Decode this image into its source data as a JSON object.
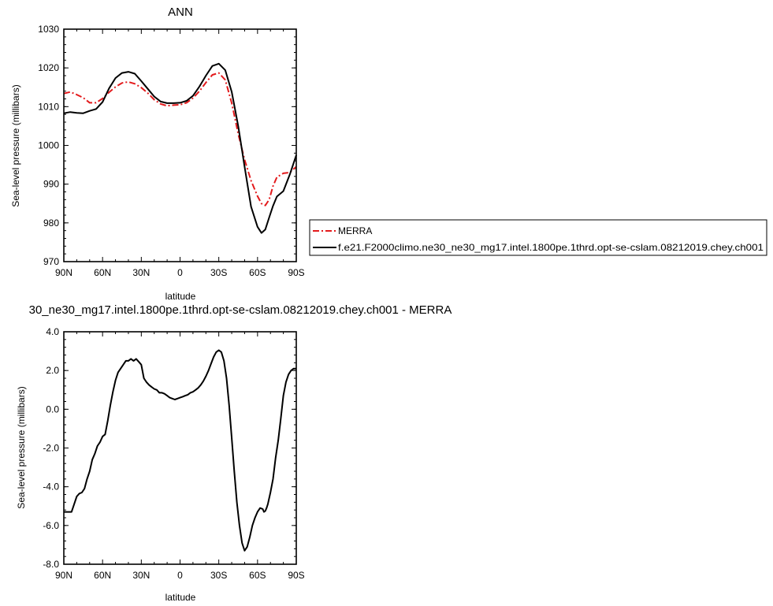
{
  "chart_data": [
    {
      "type": "line",
      "title": "ANN",
      "xlabel": "latitude",
      "ylabel": "Sea-level pressure (millibars)",
      "xlim": [
        90,
        -90
      ],
      "ylim": [
        970,
        1030
      ],
      "x_ticks": [
        90,
        60,
        30,
        0,
        -30,
        -60,
        -90
      ],
      "x_tick_labels": [
        "90N",
        "60N",
        "30N",
        "0",
        "30S",
        "60S",
        "90S"
      ],
      "y_ticks": [
        970,
        980,
        990,
        1000,
        1010,
        1020,
        1030
      ],
      "y_tick_labels": [
        "970",
        "980",
        "990",
        "1000",
        "1010",
        "1020",
        "1030"
      ],
      "legend_position": "right",
      "series": [
        {
          "name": "MERRA",
          "color": "#e31a1c",
          "dash": "dash-dot",
          "x": [
            90,
            85,
            80,
            75,
            70,
            65,
            60,
            55,
            50,
            45,
            40,
            35,
            30,
            25,
            20,
            15,
            10,
            5,
            0,
            -5,
            -10,
            -15,
            -20,
            -25,
            -30,
            -35,
            -40,
            -45,
            -50,
            -55,
            -60,
            -63,
            -66,
            -69,
            -72,
            -75,
            -80,
            -85,
            -90
          ],
          "y": [
            1013.4,
            1013.8,
            1013.1,
            1012.3,
            1011.0,
            1011.0,
            1012.1,
            1013.7,
            1015.1,
            1016.1,
            1016.4,
            1015.9,
            1014.9,
            1013.5,
            1011.8,
            1010.7,
            1010.2,
            1010.4,
            1010.5,
            1011.0,
            1012.2,
            1014.0,
            1016.2,
            1018.2,
            1018.7,
            1016.9,
            1010.9,
            1003.0,
            996.3,
            990.9,
            986.9,
            985.0,
            984.5,
            986.0,
            989.5,
            991.8,
            992.8,
            993.0,
            994.5
          ]
        },
        {
          "name": "f.e21.F2000climo.ne30_ne30_mg17.intel.1800pe.1thrd.opt-se-cslam.08212019.chey.ch001",
          "color": "#000000",
          "dash": "solid",
          "x": [
            90,
            85,
            80,
            75,
            70,
            65,
            60,
            55,
            50,
            45,
            40,
            35,
            30,
            25,
            20,
            15,
            10,
            5,
            0,
            -5,
            -10,
            -15,
            -20,
            -25,
            -30,
            -35,
            -40,
            -45,
            -50,
            -55,
            -60,
            -63,
            -66,
            -69,
            -72,
            -75,
            -80,
            -85,
            -90
          ],
          "y": [
            1008.3,
            1008.6,
            1008.4,
            1008.3,
            1008.9,
            1009.4,
            1011.2,
            1014.7,
            1017.4,
            1018.7,
            1019.0,
            1018.5,
            1016.6,
            1014.6,
            1012.6,
            1011.3,
            1010.9,
            1010.9,
            1011.0,
            1011.5,
            1012.8,
            1015.2,
            1018.0,
            1020.5,
            1021.1,
            1019.4,
            1013.8,
            1005.0,
            994.5,
            984.2,
            979.0,
            977.4,
            978.3,
            981.4,
            984.4,
            986.8,
            988.2,
            992.5,
            997.5
          ]
        }
      ]
    },
    {
      "type": "line",
      "title": "30_ne30_mg17.intel.1800pe.1thrd.opt-se-cslam.08212019.chey.ch001 - MERRA",
      "xlabel": "latitude",
      "ylabel": "Sea-level pressure (millibars)",
      "xlim": [
        90,
        -90
      ],
      "ylim": [
        -8.0,
        4.0
      ],
      "x_ticks": [
        90,
        60,
        30,
        0,
        -30,
        -60,
        -90
      ],
      "x_tick_labels": [
        "90N",
        "60N",
        "30N",
        "0",
        "30S",
        "60S",
        "90S"
      ],
      "y_ticks": [
        -8,
        -6,
        -4,
        -2,
        0,
        2,
        4
      ],
      "y_tick_labels": [
        "-8.0",
        "-6.0",
        "-4.0",
        "-2.0",
        "0.0",
        "2.0",
        "4.0"
      ],
      "series": [
        {
          "color": "#000000",
          "dash": "solid",
          "x": [
            90,
            86,
            84,
            82,
            80,
            78,
            76,
            74,
            72,
            70,
            68,
            66,
            64,
            62,
            60,
            58,
            56,
            54,
            52,
            50,
            48,
            46,
            44,
            42,
            40,
            38,
            36,
            34,
            32,
            30,
            28,
            26,
            24,
            22,
            20,
            18,
            16,
            14,
            12,
            10,
            8,
            6,
            4,
            2,
            0,
            -2,
            -4,
            -6,
            -8,
            -10,
            -12,
            -14,
            -16,
            -18,
            -20,
            -22,
            -24,
            -26,
            -28,
            -30,
            -32,
            -34,
            -36,
            -38,
            -40,
            -42,
            -44,
            -46,
            -48,
            -50,
            -52,
            -54,
            -56,
            -58,
            -60,
            -62,
            -64,
            -65,
            -66,
            -67,
            -68,
            -70,
            -72,
            -74,
            -76,
            -78,
            -80,
            -82,
            -84,
            -86,
            -88,
            -90
          ],
          "y": [
            -5.3,
            -5.3,
            -5.3,
            -4.9,
            -4.5,
            -4.35,
            -4.3,
            -4.1,
            -3.6,
            -3.2,
            -2.6,
            -2.3,
            -1.9,
            -1.7,
            -1.4,
            -1.3,
            -0.6,
            0.2,
            0.9,
            1.5,
            1.9,
            2.1,
            2.3,
            2.5,
            2.5,
            2.6,
            2.5,
            2.6,
            2.45,
            2.3,
            1.6,
            1.4,
            1.25,
            1.15,
            1.05,
            1.0,
            0.85,
            0.85,
            0.8,
            0.7,
            0.6,
            0.55,
            0.5,
            0.55,
            0.6,
            0.65,
            0.7,
            0.75,
            0.85,
            0.9,
            1.0,
            1.1,
            1.25,
            1.45,
            1.7,
            2.0,
            2.35,
            2.7,
            2.95,
            3.05,
            2.95,
            2.5,
            1.6,
            0.2,
            -1.5,
            -3.2,
            -4.8,
            -6.0,
            -6.9,
            -7.3,
            -7.1,
            -6.6,
            -6.0,
            -5.6,
            -5.3,
            -5.1,
            -5.15,
            -5.3,
            -5.25,
            -5.1,
            -4.9,
            -4.3,
            -3.6,
            -2.5,
            -1.6,
            -0.5,
            0.7,
            1.4,
            1.8,
            2.0,
            2.1,
            2.1
          ]
        }
      ]
    }
  ]
}
